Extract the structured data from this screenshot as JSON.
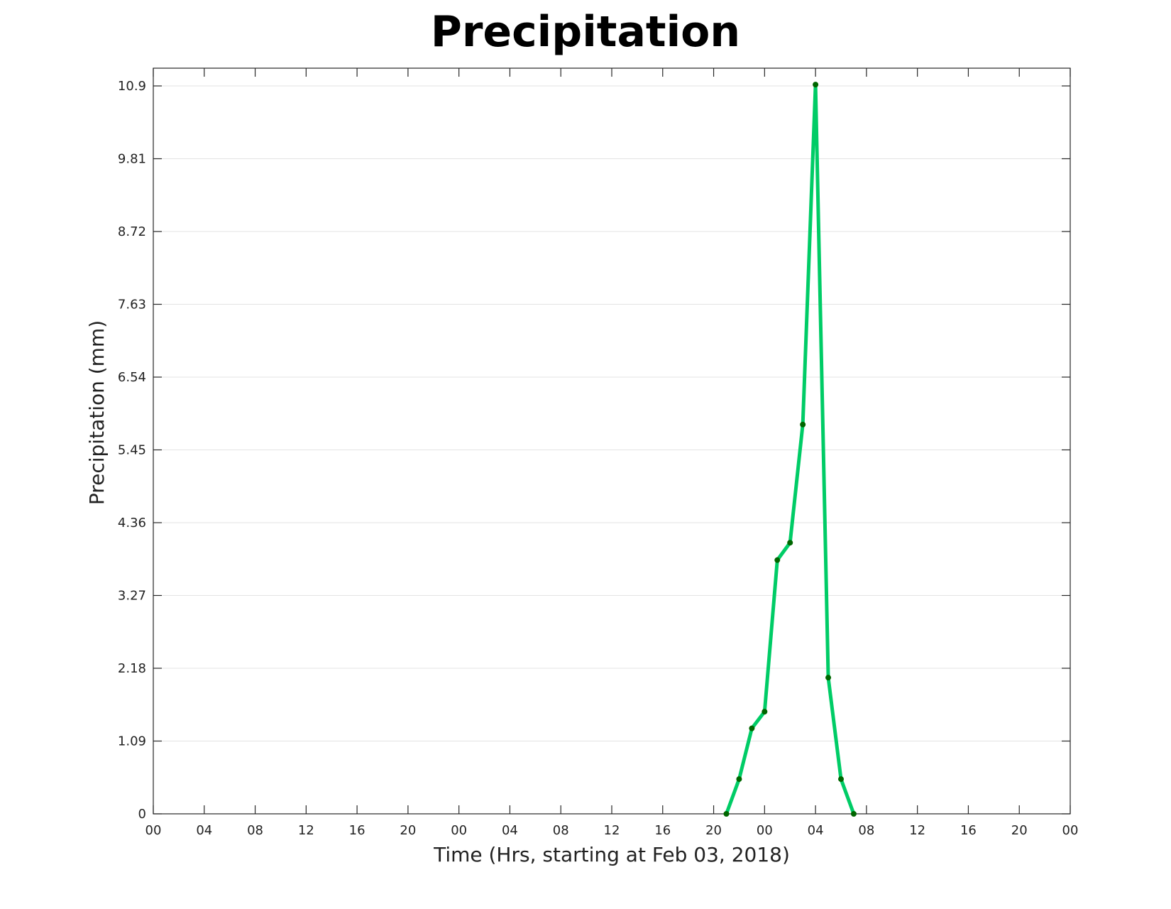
{
  "chart_data": {
    "type": "line",
    "title": "Precipitation",
    "xlabel": "Time (Hrs, starting at Feb 03, 2018)",
    "ylabel": "Precipitation (mm)",
    "x_ticks": [
      "00",
      "04",
      "08",
      "12",
      "16",
      "20",
      "00",
      "04",
      "08",
      "12",
      "16",
      "20",
      "00",
      "04",
      "08",
      "12",
      "16",
      "20",
      "00"
    ],
    "x_tick_hours": [
      0,
      4,
      8,
      12,
      16,
      20,
      24,
      28,
      32,
      36,
      40,
      44,
      48,
      52,
      56,
      60,
      64,
      68,
      72
    ],
    "y_ticks": [
      "0",
      "1.09",
      "2.18",
      "3.27",
      "4.36",
      "5.45",
      "6.54",
      "7.63",
      "8.72",
      "9.81",
      "10.9"
    ],
    "y_tick_values": [
      0,
      1.09,
      2.18,
      3.27,
      4.36,
      5.45,
      6.54,
      7.63,
      8.72,
      9.81,
      10.9
    ],
    "xlim": [
      0,
      72
    ],
    "ylim": [
      0,
      10.9
    ],
    "grid": "horizontal",
    "series": [
      {
        "color": "#00cc66",
        "marker_color": "#006600",
        "x": [
          45,
          46,
          47,
          48,
          49,
          50,
          51,
          52,
          53,
          54,
          55
        ],
        "y": [
          0.0,
          0.52,
          1.28,
          1.53,
          3.8,
          4.06,
          5.83,
          10.92,
          2.04,
          0.52,
          0.0
        ]
      }
    ]
  }
}
